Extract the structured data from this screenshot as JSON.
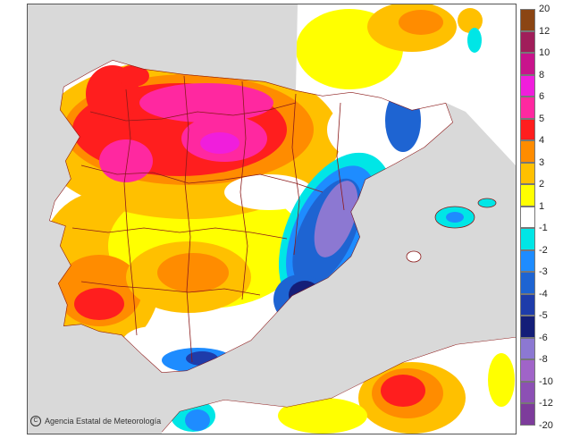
{
  "map": {
    "credit": "Agencia Estatal de Meteorología",
    "credit_icon": "copyright-icon"
  },
  "legend": {
    "positive_labels": [
      "20",
      "12",
      "10",
      "8",
      "6",
      "5",
      "4",
      "3",
      "2",
      "1"
    ],
    "negative_labels": [
      "-1",
      "-2",
      "-3",
      "-4",
      "-5",
      "-6",
      "-8",
      "-10",
      "-12",
      "-20"
    ],
    "positive_colors": [
      "#8b4513",
      "#a01e5a",
      "#c8148c",
      "#f01edc",
      "#ff28a0",
      "#ff1e1e",
      "#ff8c00",
      "#ffc000",
      "#ffff00"
    ],
    "neutral_color": "#ffffff",
    "negative_colors": [
      "#00e6e6",
      "#1e8cff",
      "#1e64d2",
      "#1e3caa",
      "#141e78",
      "#8c78d2",
      "#a064c8",
      "#8c50b4",
      "#7d3c9b"
    ]
  },
  "colors": {
    "sea": "#d9d9d9",
    "border": "#8b1a1a"
  }
}
